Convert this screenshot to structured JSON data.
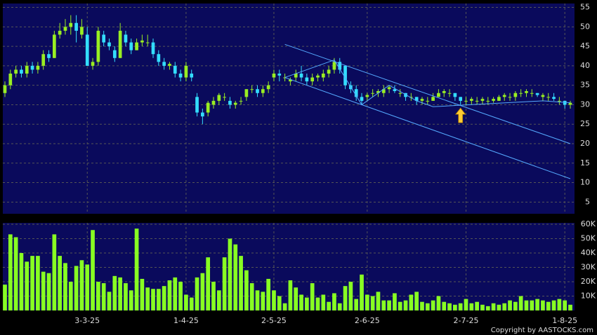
{
  "chart_data": {
    "type": "candlestick",
    "categories": [
      null,
      null,
      null,
      null,
      null,
      null,
      null,
      null,
      null,
      null,
      null,
      null,
      null,
      null,
      null,
      "3-3-25",
      null,
      null,
      null,
      null,
      null,
      null,
      null,
      null,
      null,
      null,
      null,
      null,
      null,
      null,
      null,
      null,
      null,
      "1-4-25",
      null,
      null,
      null,
      null,
      null,
      null,
      null,
      null,
      null,
      null,
      null,
      null,
      null,
      null,
      null,
      "2-5-25",
      null,
      null,
      null,
      null,
      null,
      null,
      null,
      null,
      null,
      null,
      null,
      null,
      null,
      null,
      null,
      null,
      "2-6-25",
      null,
      null,
      null,
      null,
      null,
      null,
      null,
      null,
      null,
      null,
      null,
      null,
      null,
      null,
      null,
      null,
      null,
      "2-7-25",
      null,
      null,
      null,
      null,
      null,
      null,
      null,
      null,
      null,
      null,
      null,
      null,
      null,
      null,
      null,
      null,
      null,
      "1-8-25",
      null
    ],
    "open": [
      33,
      35,
      38,
      39,
      38,
      40,
      39,
      40,
      43,
      42,
      48,
      49,
      50,
      51,
      48,
      48,
      40,
      41,
      48,
      46,
      44,
      42,
      48,
      46,
      44,
      46,
      46,
      46,
      43,
      41,
      40,
      40,
      38,
      37,
      38,
      32,
      28,
      28,
      30,
      31,
      32,
      31,
      30,
      31,
      32,
      34,
      34,
      33,
      34,
      37,
      38,
      37,
      36,
      37,
      38,
      37,
      36,
      37,
      37,
      38,
      39,
      41,
      40,
      35,
      34,
      32,
      32,
      33,
      33,
      33,
      34,
      34,
      33,
      33,
      32,
      32,
      31,
      31,
      31,
      32,
      33,
      33,
      33,
      32,
      31,
      31,
      31,
      31,
      31,
      31,
      31,
      32,
      32,
      32,
      33,
      33,
      33,
      33,
      32,
      32,
      32,
      31,
      31,
      30
    ],
    "high": [
      36,
      39,
      40,
      40,
      41,
      41,
      41,
      44,
      44,
      49,
      51,
      52,
      53,
      53,
      52,
      50,
      42,
      50,
      49,
      47,
      45,
      51,
      49,
      47,
      47,
      48,
      48,
      47,
      44,
      42,
      41,
      41,
      39,
      41,
      39,
      33,
      29,
      31,
      32,
      33,
      33,
      32,
      31,
      32,
      34,
      35,
      35,
      35,
      36,
      39,
      39,
      38,
      37,
      39,
      40,
      38,
      38,
      38,
      39,
      40,
      42,
      42,
      40,
      36,
      35,
      33,
      33,
      34,
      34,
      35,
      35,
      35,
      34,
      33,
      33,
      32,
      32,
      32,
      33,
      34,
      34,
      34,
      33,
      32,
      32,
      32,
      32,
      32,
      32,
      32,
      32.5,
      33,
      33,
      33.5,
      34,
      34,
      34,
      33,
      33,
      33,
      33,
      32,
      31,
      31
    ],
    "low": [
      32,
      34,
      37,
      37,
      37,
      38,
      38,
      39,
      41,
      42,
      47,
      48,
      48,
      46,
      47,
      40,
      39,
      40,
      45,
      44,
      41,
      42,
      45,
      43,
      44,
      45,
      45,
      42,
      40,
      39,
      39,
      37,
      36,
      36,
      36,
      27,
      25,
      27,
      29,
      30,
      31,
      29,
      29,
      30,
      31,
      33,
      32,
      32,
      33,
      36,
      36,
      36,
      35,
      36,
      36,
      35,
      35,
      36,
      36,
      37,
      38,
      38,
      34,
      33,
      31,
      30,
      31,
      32,
      32,
      32,
      33,
      33,
      32,
      31,
      31,
      30,
      30,
      30,
      31,
      32,
      32,
      32,
      31,
      30,
      30,
      30,
      30,
      30,
      30,
      30.5,
      31,
      31,
      31,
      31,
      32,
      32,
      32,
      32,
      31,
      31,
      31,
      30,
      29,
      29
    ],
    "close": [
      35,
      38,
      39,
      38,
      40,
      39,
      40,
      43,
      42,
      48,
      49,
      50,
      51,
      49,
      50,
      40,
      41,
      49,
      46,
      45,
      42,
      49,
      46,
      44,
      46,
      46.5,
      46,
      43,
      41,
      40,
      40.5,
      38,
      37,
      40,
      37,
      28,
      27,
      30.5,
      31,
      32.5,
      32,
      30,
      30.5,
      31,
      34,
      34,
      33,
      34,
      35,
      38,
      37.5,
      37,
      36.5,
      38,
      37,
      36,
      37,
      37.5,
      38,
      39,
      41,
      39,
      35,
      34,
      32,
      31,
      32.5,
      33,
      33.5,
      34,
      34.5,
      33.5,
      33,
      32,
      32,
      31,
      31.5,
      31,
      32,
      33,
      33.5,
      33,
      32,
      31,
      31,
      31.5,
      31,
      31.5,
      31,
      31.5,
      32,
      32.5,
      32,
      33,
      33,
      33.5,
      33,
      32.5,
      32.5,
      32,
      31.5,
      31,
      30,
      30.5
    ],
    "up_color": "#99ee22",
    "down_color": "#33ddff",
    "ylim": [
      2,
      56
    ],
    "yticks": [
      5,
      10,
      15,
      20,
      25,
      30,
      35,
      40,
      45,
      50,
      55
    ],
    "grid": true,
    "trendlines": [
      {
        "color": "#55aaff",
        "points": [
          [
            51,
            45.5
          ],
          [
            103,
            20
          ]
        ]
      },
      {
        "color": "#55aaff",
        "points": [
          [
            51,
            37
          ],
          [
            103,
            11
          ]
        ]
      },
      {
        "color": "#55aaff",
        "points": [
          [
            51,
            37
          ],
          [
            60,
            41.5
          ],
          [
            65,
            30
          ],
          [
            70,
            35
          ],
          [
            75,
            31
          ],
          [
            78,
            29.5
          ],
          [
            98,
            31
          ],
          [
            103,
            30.5
          ]
        ]
      }
    ],
    "arrow": {
      "x": 83,
      "y": 27,
      "color": "#ffcc33"
    },
    "volume": {
      "color": "#88ff22",
      "values": [
        18000,
        53000,
        51000,
        40000,
        34000,
        38000,
        38000,
        27000,
        26000,
        53000,
        38000,
        33000,
        20000,
        31000,
        35000,
        32000,
        56000,
        20000,
        19000,
        13000,
        24000,
        23000,
        19000,
        14000,
        57000,
        22000,
        16000,
        15000,
        15000,
        17000,
        21000,
        23000,
        20000,
        11000,
        9000,
        23000,
        26000,
        37000,
        20000,
        14000,
        37000,
        50000,
        46000,
        38000,
        28000,
        19000,
        14000,
        13000,
        22000,
        14000,
        10000,
        5000,
        21000,
        16000,
        11000,
        9000,
        19000,
        9000,
        11000,
        6000,
        12000,
        5000,
        17000,
        20000,
        8000,
        25000,
        11000,
        10000,
        13000,
        7000,
        7000,
        12000,
        6000,
        7000,
        11000,
        13000,
        6000,
        5000,
        7000,
        10000,
        6000,
        5000,
        4000,
        5000,
        8000,
        5000,
        6000,
        4000,
        3000,
        5000,
        4000,
        5000,
        7000,
        6000,
        10000,
        7000,
        7000,
        8000,
        7000,
        6000,
        7000,
        8000,
        7000,
        4000
      ],
      "ylim": [
        0,
        61000
      ],
      "yticks": [
        {
          "value": 10000,
          "label": "10K"
        },
        {
          "value": 20000,
          "label": "20K"
        },
        {
          "value": 30000,
          "label": "30K"
        },
        {
          "value": 40000,
          "label": "40K"
        },
        {
          "value": 50000,
          "label": "50K"
        },
        {
          "value": 60000,
          "label": "60K"
        }
      ]
    },
    "copyright": "Copyright by AASTOCKS.com"
  }
}
